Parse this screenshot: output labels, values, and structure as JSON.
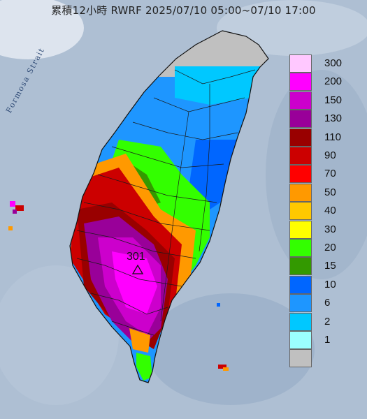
{
  "title": "累積12小時 RWRF 2025/07/10 05:00~07/10 17:00",
  "strait_label": "Formosa Strait",
  "peak": {
    "value": "301",
    "marker": "triangle-marker"
  },
  "legend": [
    {
      "label": "300",
      "color": "#ffc8ff"
    },
    {
      "label": "200",
      "color": "#ff00ff"
    },
    {
      "label": "150",
      "color": "#cc00cc"
    },
    {
      "label": "130",
      "color": "#990099"
    },
    {
      "label": "110",
      "color": "#990000"
    },
    {
      "label": "90",
      "color": "#cc0000"
    },
    {
      "label": "70",
      "color": "#ff0000"
    },
    {
      "label": "50",
      "color": "#ff9900"
    },
    {
      "label": "40",
      "color": "#ffc800"
    },
    {
      "label": "30",
      "color": "#ffff00"
    },
    {
      "label": "20",
      "color": "#33ff00"
    },
    {
      "label": "15",
      "color": "#339900"
    },
    {
      "label": "10",
      "color": "#0066ff"
    },
    {
      "label": "6",
      "color": "#1e96ff"
    },
    {
      "label": "2",
      "color": "#00c8ff"
    },
    {
      "label": "1",
      "color": "#9bffff"
    },
    {
      "label": "",
      "color": "#c0c0c0"
    }
  ]
}
